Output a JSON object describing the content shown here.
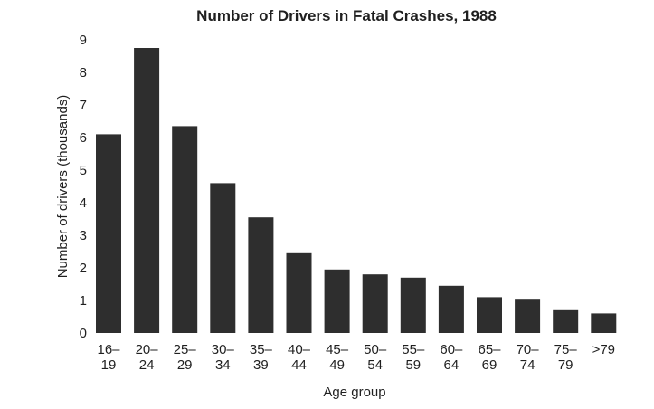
{
  "chart_data": {
    "type": "bar",
    "title": "Number of Drivers in Fatal Crashes, 1988",
    "xlabel": "Age group",
    "ylabel": "Number of drivers (thousands)",
    "ylim": [
      0,
      9
    ],
    "yticks": [
      "0",
      "1",
      "2",
      "3",
      "4",
      "5",
      "6",
      "7",
      "8",
      "9"
    ],
    "grid": false,
    "legend": "none",
    "categories": [
      [
        "16–",
        "19"
      ],
      [
        "20–",
        "24"
      ],
      [
        "25–",
        "29"
      ],
      [
        "30–",
        "34"
      ],
      [
        "35–",
        "39"
      ],
      [
        "40–",
        "44"
      ],
      [
        "45–",
        "49"
      ],
      [
        "50–",
        "54"
      ],
      [
        "55–",
        "59"
      ],
      [
        "60–",
        "64"
      ],
      [
        "65–",
        "69"
      ],
      [
        "70–",
        "74"
      ],
      [
        "75–",
        "79"
      ],
      [
        ">79",
        ""
      ]
    ],
    "values": [
      6.1,
      8.75,
      6.35,
      4.6,
      3.55,
      2.45,
      1.95,
      1.8,
      1.7,
      1.45,
      1.1,
      1.05,
      0.7,
      0.6
    ],
    "bar_color": "#2e2e2e"
  }
}
